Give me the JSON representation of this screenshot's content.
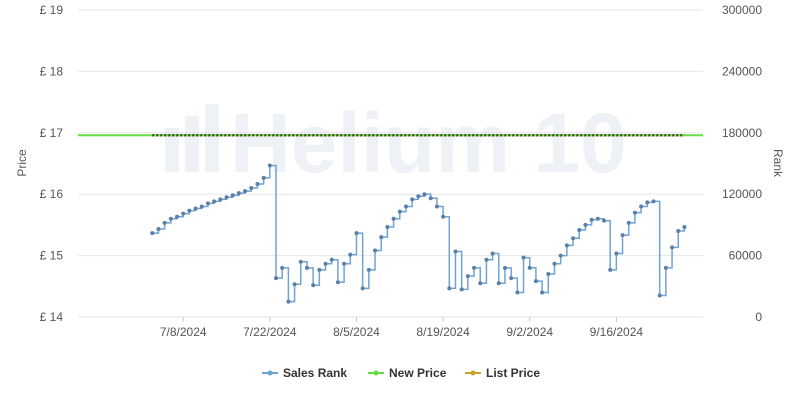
{
  "watermark_text": "Helium 10",
  "chart_data": {
    "type": "line",
    "title": "",
    "ylabel_left": "Price",
    "ylabel_right": "Rank",
    "y_left_range": [
      14,
      19
    ],
    "y_left_ticks": [
      "£ 19",
      "£ 18",
      "£ 17",
      "£ 16",
      "£ 15",
      "£ 14"
    ],
    "y_right_range": [
      0,
      300000
    ],
    "y_right_ticks": [
      "300000",
      "240000",
      "180000",
      "120000",
      "60000",
      "0"
    ],
    "x_range": [
      "2024-06-21",
      "2024-09-30"
    ],
    "x_ticks": [
      "7/8/2024",
      "7/22/2024",
      "8/5/2024",
      "8/19/2024",
      "9/2/2024",
      "9/16/2024"
    ],
    "x_tick_dates": [
      "2024-07-08",
      "2024-07-22",
      "2024-08-05",
      "2024-08-19",
      "2024-09-02",
      "2024-09-16"
    ],
    "grid": true,
    "legend_position": "bottom-center",
    "legend": [
      "Sales Rank",
      "New Price",
      "List Price"
    ],
    "series": [
      {
        "name": "New Price",
        "axis": "left",
        "color": "#66dd44",
        "x": [
          "2024-06-21",
          "2024-09-30"
        ],
        "values": [
          16.96,
          16.96
        ]
      },
      {
        "name": "List Price",
        "axis": "left",
        "color": "#c9a227",
        "x": [
          "2024-07-03",
          "2024-09-27"
        ],
        "values": [
          16.96,
          16.96
        ]
      },
      {
        "name": "Sales Rank",
        "axis": "right",
        "color": "#6fa3d6",
        "x": [
          "2024-07-03",
          "2024-07-04",
          "2024-07-05",
          "2024-07-06",
          "2024-07-07",
          "2024-07-08",
          "2024-07-09",
          "2024-07-10",
          "2024-07-11",
          "2024-07-12",
          "2024-07-13",
          "2024-07-14",
          "2024-07-15",
          "2024-07-16",
          "2024-07-17",
          "2024-07-18",
          "2024-07-19",
          "2024-07-20",
          "2024-07-21",
          "2024-07-22",
          "2024-07-23",
          "2024-07-24",
          "2024-07-25",
          "2024-07-26",
          "2024-07-27",
          "2024-07-28",
          "2024-07-29",
          "2024-07-30",
          "2024-07-31",
          "2024-08-01",
          "2024-08-02",
          "2024-08-03",
          "2024-08-04",
          "2024-08-05",
          "2024-08-06",
          "2024-08-07",
          "2024-08-08",
          "2024-08-09",
          "2024-08-10",
          "2024-08-11",
          "2024-08-12",
          "2024-08-13",
          "2024-08-14",
          "2024-08-15",
          "2024-08-16",
          "2024-08-17",
          "2024-08-18",
          "2024-08-19",
          "2024-08-20",
          "2024-08-21",
          "2024-08-22",
          "2024-08-23",
          "2024-08-24",
          "2024-08-25",
          "2024-08-26",
          "2024-08-27",
          "2024-08-28",
          "2024-08-29",
          "2024-08-30",
          "2024-08-31",
          "2024-09-01",
          "2024-09-02",
          "2024-09-03",
          "2024-09-04",
          "2024-09-05",
          "2024-09-06",
          "2024-09-07",
          "2024-09-08",
          "2024-09-09",
          "2024-09-10",
          "2024-09-11",
          "2024-09-12",
          "2024-09-13",
          "2024-09-14",
          "2024-09-15",
          "2024-09-16",
          "2024-09-17",
          "2024-09-18",
          "2024-09-19",
          "2024-09-20",
          "2024-09-21",
          "2024-09-22",
          "2024-09-23",
          "2024-09-24",
          "2024-09-25",
          "2024-09-26",
          "2024-09-27"
        ],
        "values": [
          82000,
          86000,
          92000,
          96000,
          98000,
          101000,
          104000,
          106000,
          108000,
          111000,
          113000,
          115000,
          117000,
          119000,
          121000,
          123000,
          126000,
          130000,
          136000,
          148000,
          38000,
          48000,
          15000,
          32000,
          54000,
          48000,
          31000,
          46000,
          52000,
          56000,
          34000,
          52000,
          61000,
          82000,
          28000,
          46000,
          65000,
          78000,
          88000,
          96000,
          103000,
          108000,
          115000,
          118000,
          120000,
          116000,
          108000,
          98000,
          28000,
          64000,
          27000,
          40000,
          48000,
          33000,
          56000,
          62000,
          33000,
          48000,
          38000,
          24000,
          58000,
          48000,
          35000,
          24000,
          42000,
          52000,
          60000,
          70000,
          77000,
          85000,
          90000,
          95000,
          96000,
          94000,
          46000,
          62000,
          80000,
          92000,
          102000,
          108000,
          112000,
          113000,
          21000,
          48000,
          68000,
          84000,
          88000
        ]
      }
    ]
  }
}
